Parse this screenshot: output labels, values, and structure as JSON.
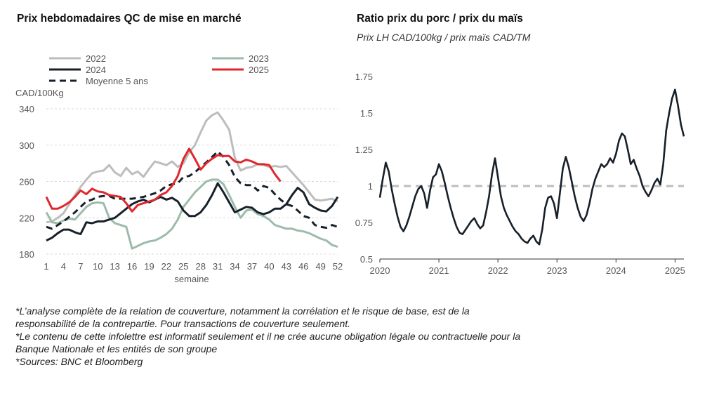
{
  "left_chart": {
    "title": "Prix hebdomadaires QC de mise en marché",
    "chart_data": {
      "type": "line",
      "ylabel": "CAD/100Kg",
      "xlabel": "semaine",
      "ylim": [
        180,
        340
      ],
      "yticks": [
        180,
        220,
        260,
        300,
        340
      ],
      "xlim": [
        1,
        52
      ],
      "xticks": [
        1,
        4,
        7,
        10,
        13,
        16,
        19,
        22,
        25,
        28,
        31,
        34,
        37,
        40,
        43,
        46,
        49,
        52
      ],
      "grid": true,
      "legend_position": "top",
      "series": [
        {
          "name": "2022",
          "color": "#bdbdbd",
          "dashed": false,
          "x": [
            1,
            2,
            3,
            4,
            5,
            6,
            7,
            8,
            9,
            10,
            11,
            12,
            13,
            14,
            15,
            16,
            17,
            18,
            19,
            20,
            21,
            22,
            23,
            24,
            25,
            26,
            27,
            28,
            29,
            30,
            31,
            32,
            33,
            34,
            35,
            36,
            37,
            38,
            39,
            40,
            41,
            42,
            43,
            44,
            45,
            46,
            47,
            48,
            49,
            50,
            51,
            52
          ],
          "values": [
            215,
            216,
            220,
            225,
            235,
            245,
            254,
            262,
            269,
            271,
            272,
            278,
            270,
            266,
            275,
            268,
            271,
            265,
            274,
            282,
            280,
            278,
            282,
            276,
            280,
            292,
            300,
            314,
            327,
            333,
            336,
            327,
            317,
            286,
            272,
            275,
            276,
            279,
            278,
            276,
            277,
            276,
            277,
            270,
            263,
            256,
            248,
            240,
            239,
            240,
            241,
            238
          ]
        },
        {
          "name": "2023",
          "color": "#9dbbab",
          "dashed": false,
          "x": [
            1,
            2,
            3,
            4,
            5,
            6,
            7,
            8,
            9,
            10,
            11,
            12,
            13,
            14,
            15,
            16,
            17,
            18,
            19,
            20,
            21,
            22,
            23,
            24,
            25,
            26,
            27,
            28,
            29,
            30,
            31,
            32,
            33,
            34,
            35,
            36,
            37,
            38,
            39,
            40,
            41,
            42,
            43,
            44,
            45,
            46,
            47,
            48,
            49,
            50,
            51,
            52
          ],
          "values": [
            226,
            215,
            214,
            217,
            219,
            218,
            225,
            232,
            236,
            237,
            236,
            220,
            214,
            212,
            210,
            186,
            189,
            192,
            194,
            195,
            198,
            202,
            208,
            218,
            232,
            240,
            248,
            254,
            260,
            262,
            262,
            257,
            245,
            232,
            220,
            228,
            229,
            224,
            222,
            218,
            212,
            210,
            208,
            208,
            206,
            205,
            203,
            200,
            197,
            195,
            190,
            188
          ]
        },
        {
          "name": "2024",
          "color": "#17202a",
          "dashed": false,
          "x": [
            1,
            2,
            3,
            4,
            5,
            6,
            7,
            8,
            9,
            10,
            11,
            12,
            13,
            14,
            15,
            16,
            17,
            18,
            19,
            20,
            21,
            22,
            23,
            24,
            25,
            26,
            27,
            28,
            29,
            30,
            31,
            32,
            33,
            34,
            35,
            36,
            37,
            38,
            39,
            40,
            41,
            42,
            43,
            44,
            45,
            46,
            47,
            48,
            49,
            50,
            51,
            52
          ],
          "values": [
            195,
            198,
            203,
            207,
            207,
            204,
            202,
            215,
            214,
            216,
            216,
            218,
            220,
            225,
            230,
            235,
            238,
            240,
            237,
            240,
            243,
            240,
            242,
            238,
            228,
            222,
            222,
            226,
            234,
            245,
            258,
            248,
            237,
            226,
            229,
            232,
            231,
            226,
            224,
            226,
            230,
            230,
            235,
            245,
            253,
            248,
            235,
            231,
            228,
            227,
            233,
            243
          ]
        },
        {
          "name": "2025",
          "color": "#e0282c",
          "dashed": false,
          "x": [
            1,
            2,
            3,
            4,
            5,
            6,
            7,
            8,
            9,
            10,
            11,
            12,
            13,
            14,
            15,
            16,
            17,
            18,
            19,
            20,
            21,
            22,
            23,
            24,
            25,
            26,
            27,
            28,
            29,
            30,
            31,
            32,
            33,
            34,
            35,
            36,
            37,
            38,
            39,
            40,
            41,
            42
          ],
          "values": [
            243,
            230,
            230,
            233,
            237,
            243,
            250,
            246,
            252,
            249,
            248,
            245,
            244,
            243,
            236,
            227,
            234,
            236,
            238,
            240,
            245,
            248,
            255,
            266,
            285,
            296,
            285,
            273,
            280,
            285,
            289,
            288,
            288,
            282,
            281,
            284,
            282,
            279,
            279,
            278,
            268,
            260
          ]
        },
        {
          "name": "Moyenne 5 ans",
          "color": "#17202a",
          "dashed": true,
          "x": [
            1,
            2,
            3,
            4,
            5,
            6,
            7,
            8,
            9,
            10,
            11,
            12,
            13,
            14,
            15,
            16,
            17,
            18,
            19,
            20,
            21,
            22,
            23,
            24,
            25,
            26,
            27,
            28,
            29,
            30,
            31,
            32,
            33,
            34,
            35,
            36,
            37,
            38,
            39,
            40,
            41,
            42,
            43,
            44,
            45,
            46,
            47,
            48,
            49,
            50,
            51,
            52
          ],
          "values": [
            210,
            208,
            212,
            216,
            221,
            226,
            232,
            238,
            240,
            243,
            244,
            244,
            241,
            241,
            241,
            241,
            242,
            243,
            245,
            247,
            250,
            255,
            257,
            258,
            265,
            266,
            270,
            276,
            281,
            287,
            293,
            287,
            278,
            265,
            258,
            256,
            256,
            250,
            255,
            253,
            246,
            240,
            235,
            233,
            228,
            222,
            220,
            212,
            210,
            209,
            212,
            210
          ]
        }
      ]
    }
  },
  "right_chart": {
    "title": "Ratio prix du porc / prix du maïs",
    "subtitle": "Prix LH CAD/100kg / prix maïs CAD/TM",
    "chart_data": {
      "type": "line",
      "ylim": [
        0.5,
        1.75
      ],
      "yticks": [
        "0.5",
        "0.75",
        "1",
        "1.25",
        "1.5",
        "1.75"
      ],
      "xlim": [
        2020.0,
        2025.15
      ],
      "xticks": [
        "2020",
        "2021",
        "2022",
        "2023",
        "2024",
        "2025"
      ],
      "grid": false,
      "reference_line": {
        "value": 1.0,
        "color": "#bdbdbd",
        "dashed": true
      },
      "series": [
        {
          "color": "#17202a",
          "x": [
            2020.0,
            2020.05,
            2020.1,
            2020.15,
            2020.2,
            2020.25,
            2020.3,
            2020.35,
            2020.4,
            2020.45,
            2020.5,
            2020.55,
            2020.6,
            2020.65,
            2020.7,
            2020.75,
            2020.8,
            2020.85,
            2020.9,
            2020.95,
            2021.0,
            2021.05,
            2021.1,
            2021.15,
            2021.2,
            2021.25,
            2021.3,
            2021.35,
            2021.4,
            2021.45,
            2021.5,
            2021.55,
            2021.6,
            2021.65,
            2021.7,
            2021.75,
            2021.8,
            2021.85,
            2021.9,
            2021.95,
            2022.0,
            2022.05,
            2022.1,
            2022.15,
            2022.2,
            2022.25,
            2022.3,
            2022.35,
            2022.4,
            2022.45,
            2022.5,
            2022.55,
            2022.6,
            2022.65,
            2022.7,
            2022.75,
            2022.8,
            2022.85,
            2022.9,
            2022.95,
            2023.0,
            2023.05,
            2023.1,
            2023.15,
            2023.2,
            2023.25,
            2023.3,
            2023.35,
            2023.4,
            2023.45,
            2023.5,
            2023.55,
            2023.6,
            2023.65,
            2023.7,
            2023.75,
            2023.8,
            2023.85,
            2023.9,
            2023.95,
            2024.0,
            2024.05,
            2024.1,
            2024.15,
            2024.2,
            2024.25,
            2024.3,
            2024.35,
            2024.4,
            2024.45,
            2024.5,
            2024.55,
            2024.6,
            2024.65,
            2024.7,
            2024.75,
            2024.8,
            2024.85,
            2024.9,
            2024.95,
            2025.0,
            2025.05,
            2025.1,
            2025.15
          ],
          "values": [
            0.92,
            1.05,
            1.16,
            1.1,
            0.98,
            0.88,
            0.79,
            0.72,
            0.69,
            0.73,
            0.79,
            0.86,
            0.93,
            0.98,
            1.0,
            0.95,
            0.85,
            0.97,
            1.06,
            1.08,
            1.15,
            1.1,
            1.02,
            0.93,
            0.85,
            0.78,
            0.72,
            0.68,
            0.67,
            0.7,
            0.73,
            0.76,
            0.78,
            0.74,
            0.71,
            0.73,
            0.82,
            0.93,
            1.08,
            1.19,
            1.06,
            0.93,
            0.85,
            0.8,
            0.76,
            0.72,
            0.69,
            0.67,
            0.64,
            0.62,
            0.61,
            0.64,
            0.66,
            0.62,
            0.6,
            0.7,
            0.85,
            0.92,
            0.93,
            0.88,
            0.78,
            0.95,
            1.12,
            1.2,
            1.13,
            1.03,
            0.93,
            0.85,
            0.79,
            0.76,
            0.8,
            0.88,
            0.98,
            1.05,
            1.1,
            1.15,
            1.13,
            1.15,
            1.19,
            1.16,
            1.22,
            1.31,
            1.36,
            1.34,
            1.25,
            1.15,
            1.18,
            1.12,
            1.07,
            1.0,
            0.96,
            0.93,
            0.97,
            1.02,
            1.05,
            1.01,
            1.15,
            1.38,
            1.5,
            1.6,
            1.66,
            1.55,
            1.42,
            1.34
          ]
        }
      ]
    }
  },
  "footnotes": {
    "line1": "*L’analyse complète de la relation de couverture, notamment la corrélation et le risque de base, est de la",
    "line2": "responsabilité de la contrepartie. Pour transactions de couverture seulement.",
    "line3": "*Le contenu de cette infolettre est informatif seulement et il ne crée aucune obligation légale ou contractuelle pour la",
    "line4": "Banque Nationale et les entités de son groupe",
    "line5": "*Sources: BNC et Bloomberg"
  }
}
